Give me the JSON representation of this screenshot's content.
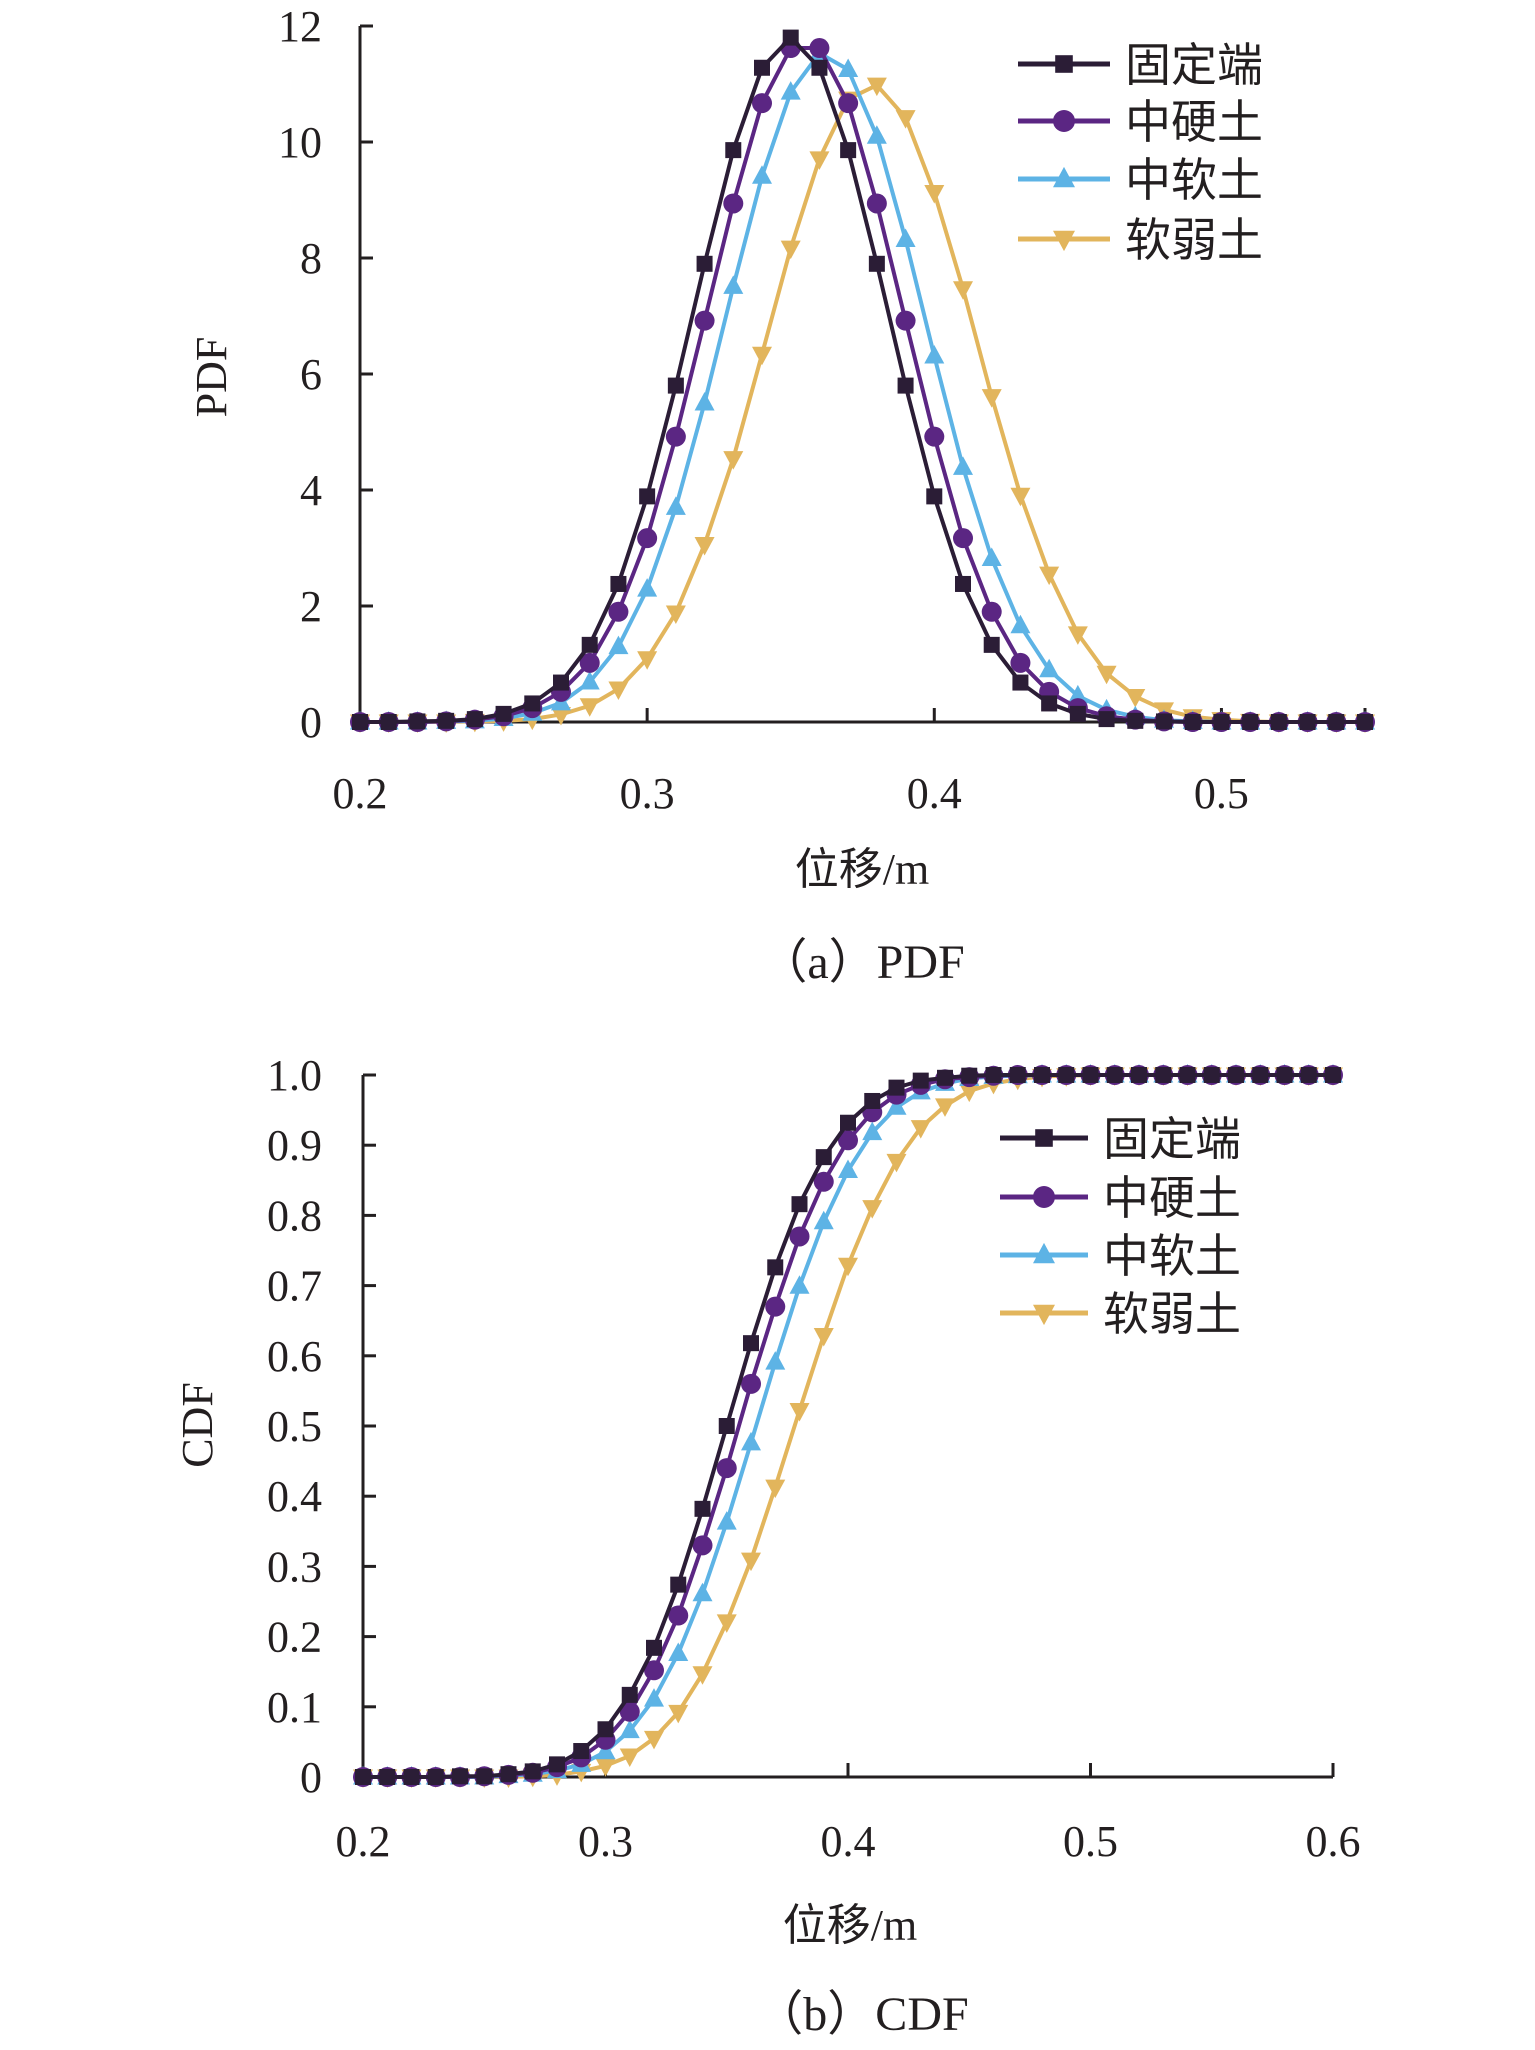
{
  "chart_data": [
    {
      "type": "line",
      "caption": "（a）PDF",
      "xlabel": "位移/m",
      "ylabel": "PDF",
      "xlim": [
        0.2,
        0.55
      ],
      "ylim": [
        0,
        12
      ],
      "xticks": [
        "0.2",
        "0.3",
        "0.4",
        "0.5"
      ],
      "yticks": [
        "0",
        "2",
        "4",
        "6",
        "8",
        "10",
        "12"
      ],
      "grid": false,
      "legend": "top-right",
      "x": [
        0.2,
        0.21,
        0.22,
        0.23,
        0.24,
        0.25,
        0.26,
        0.27,
        0.28,
        0.29,
        0.3,
        0.31,
        0.32,
        0.33,
        0.34,
        0.35,
        0.36,
        0.37,
        0.38,
        0.39,
        0.4,
        0.41,
        0.42,
        0.43,
        0.44,
        0.45,
        0.46,
        0.47,
        0.48,
        0.49,
        0.5,
        0.51,
        0.52,
        0.53,
        0.54,
        0.55
      ],
      "series": [
        {
          "name": "固定端",
          "color": "#2b1d36",
          "marker": "square",
          "values": [
            0,
            0,
            0.01,
            0.02,
            0.05,
            0.14,
            0.32,
            0.68,
            1.33,
            2.38,
            3.89,
            5.8,
            7.9,
            9.86,
            11.28,
            11.8,
            11.28,
            9.86,
            7.9,
            5.8,
            3.89,
            2.38,
            1.33,
            0.68,
            0.32,
            0.14,
            0.05,
            0.02,
            0.01,
            0,
            0,
            0,
            0,
            0,
            0,
            0
          ]
        },
        {
          "name": "中硬土",
          "color": "#5b2683",
          "marker": "circle",
          "values": [
            0,
            0,
            0,
            0.01,
            0.04,
            0.1,
            0.24,
            0.52,
            1.02,
            1.9,
            3.17,
            4.92,
            6.92,
            8.94,
            10.67,
            11.62,
            11.62,
            10.67,
            8.94,
            6.92,
            4.92,
            3.17,
            1.9,
            1.02,
            0.52,
            0.24,
            0.1,
            0.04,
            0.01,
            0,
            0,
            0,
            0,
            0,
            0,
            0
          ]
        },
        {
          "name": "中软土",
          "color": "#5db3e5",
          "marker": "triangle-up",
          "values": [
            0,
            0,
            0,
            0.01,
            0.02,
            0.06,
            0.15,
            0.33,
            0.69,
            1.3,
            2.29,
            3.7,
            5.5,
            7.51,
            9.41,
            10.86,
            11.53,
            11.25,
            10.1,
            8.32,
            6.31,
            4.39,
            2.82,
            1.66,
            0.9,
            0.45,
            0.21,
            0.09,
            0.03,
            0.01,
            0,
            0,
            0,
            0,
            0,
            0
          ]
        },
        {
          "name": "软弱土",
          "color": "#e2b55c",
          "marker": "triangle-down",
          "values": [
            0,
            0,
            0,
            0,
            0.01,
            0.02,
            0.05,
            0.13,
            0.28,
            0.57,
            1.09,
            1.88,
            3.06,
            4.54,
            6.34,
            8.17,
            9.71,
            10.74,
            10.98,
            10.42,
            9.13,
            7.47,
            5.61,
            3.91,
            2.55,
            1.52,
            0.84,
            0.44,
            0.21,
            0.09,
            0.04,
            0.01,
            0,
            0,
            0,
            0
          ]
        }
      ]
    },
    {
      "type": "line",
      "caption": "（b）CDF",
      "xlabel": "位移/m",
      "ylabel": "CDF",
      "xlim": [
        0.2,
        0.6
      ],
      "ylim": [
        0,
        1.0
      ],
      "xticks": [
        "0.2",
        "0.3",
        "0.4",
        "0.5",
        "0.6"
      ],
      "yticks": [
        "0",
        "0.1",
        "0.2",
        "0.3",
        "0.4",
        "0.5",
        "0.6",
        "0.7",
        "0.8",
        "0.9",
        "1.0"
      ],
      "grid": false,
      "legend": "right",
      "x": [
        0.2,
        0.21,
        0.22,
        0.23,
        0.24,
        0.25,
        0.26,
        0.27,
        0.28,
        0.29,
        0.3,
        0.31,
        0.32,
        0.33,
        0.34,
        0.35,
        0.36,
        0.37,
        0.38,
        0.39,
        0.4,
        0.41,
        0.42,
        0.43,
        0.44,
        0.45,
        0.46,
        0.47,
        0.48,
        0.49,
        0.5,
        0.51,
        0.52,
        0.53,
        0.54,
        0.55,
        0.56,
        0.57,
        0.58,
        0.59,
        0.6
      ],
      "series": [
        {
          "name": "固定端",
          "color": "#2b1d36",
          "marker": "square",
          "values": [
            0,
            0,
            0,
            0,
            0.001,
            0.001,
            0.004,
            0.008,
            0.018,
            0.037,
            0.068,
            0.117,
            0.184,
            0.274,
            0.382,
            0.5,
            0.618,
            0.726,
            0.816,
            0.883,
            0.932,
            0.963,
            0.982,
            0.992,
            0.996,
            0.999,
            1,
            1,
            1,
            1,
            1,
            1,
            1,
            1,
            1,
            1,
            1,
            1,
            1,
            1,
            1
          ]
        },
        {
          "name": "中硬土",
          "color": "#5b2683",
          "marker": "circle",
          "values": [
            0,
            0,
            0,
            0,
            0,
            0.001,
            0.003,
            0.006,
            0.014,
            0.028,
            0.053,
            0.093,
            0.152,
            0.23,
            0.33,
            0.44,
            0.56,
            0.67,
            0.77,
            0.848,
            0.907,
            0.947,
            0.972,
            0.986,
            0.994,
            0.997,
            0.999,
            1,
            1,
            1,
            1,
            1,
            1,
            1,
            1,
            1,
            1,
            1,
            1,
            1,
            1
          ]
        },
        {
          "name": "中软土",
          "color": "#5db3e5",
          "marker": "triangle-up",
          "values": [
            0,
            0,
            0,
            0,
            0,
            0,
            0.002,
            0.004,
            0.009,
            0.018,
            0.036,
            0.066,
            0.111,
            0.176,
            0.261,
            0.363,
            0.476,
            0.591,
            0.699,
            0.791,
            0.864,
            0.918,
            0.954,
            0.976,
            0.988,
            0.995,
            0.998,
            0.999,
            1,
            1,
            1,
            1,
            1,
            1,
            1,
            1,
            1,
            1,
            1,
            1,
            1
          ]
        },
        {
          "name": "软弱土",
          "color": "#e2b55c",
          "marker": "triangle-down",
          "values": [
            0,
            0,
            0,
            0,
            0,
            0,
            0,
            0.001,
            0.003,
            0.008,
            0.016,
            0.03,
            0.055,
            0.092,
            0.147,
            0.221,
            0.309,
            0.413,
            0.522,
            0.629,
            0.729,
            0.811,
            0.877,
            0.925,
            0.956,
            0.977,
            0.988,
            0.994,
            0.998,
            0.999,
            1,
            1,
            1,
            1,
            1,
            1,
            1,
            1,
            1,
            1,
            1
          ]
        }
      ]
    }
  ]
}
